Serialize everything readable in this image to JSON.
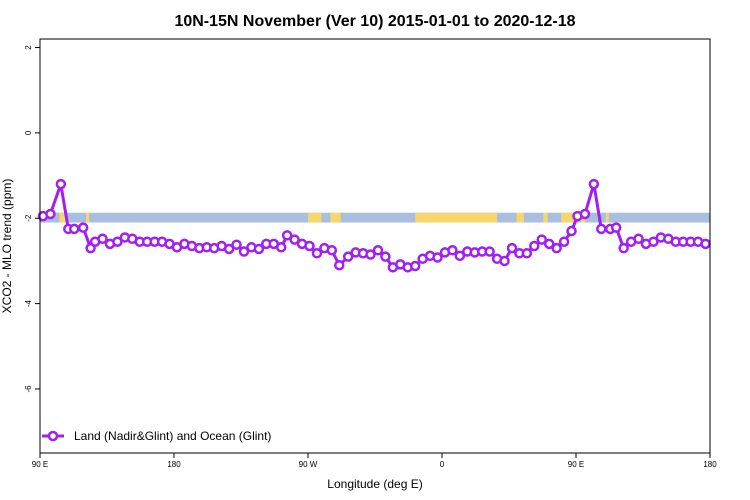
{
  "chart_data": {
    "type": "line",
    "title": "10N-15N November (Ver 10)   2015-01-01 to 2020-12-18",
    "xlabel": "Longitude (deg E)",
    "ylabel": "XCO2 - MLO trend (ppm)",
    "xlim": [
      90,
      540
    ],
    "ylim": [
      -7.5,
      2.2
    ],
    "x_ticks": [
      {
        "value": 90,
        "label": "90 E"
      },
      {
        "value": 180,
        "label": "180"
      },
      {
        "value": 270,
        "label": "90 W"
      },
      {
        "value": 360,
        "label": "0"
      },
      {
        "value": 450,
        "label": "90 E"
      },
      {
        "value": 540,
        "label": "180"
      }
    ],
    "y_ticks": [
      {
        "value": 2,
        "label": "2"
      },
      {
        "value": 0,
        "label": "0"
      },
      {
        "value": -2,
        "label": "-2"
      },
      {
        "value": -4,
        "label": "-4"
      },
      {
        "value": -6,
        "label": "-6"
      }
    ],
    "colors": {
      "series": "#a020f0",
      "ocean": "#a8bfe0",
      "land": "#f5d76e"
    },
    "background_band": {
      "y_top": -1.87,
      "y_bottom": -2.1,
      "land_segments": [
        [
          103,
          108
        ],
        [
          121,
          123
        ],
        [
          270,
          279
        ],
        [
          285,
          292
        ],
        [
          342,
          397
        ],
        [
          410,
          415
        ],
        [
          428,
          431
        ],
        [
          440,
          450
        ],
        [
          453,
          456
        ],
        [
          470,
          472
        ]
      ]
    },
    "series": [
      {
        "name": "Land (Nadir&Glint) and Ocean (Glint)",
        "x": [
          92,
          97,
          104,
          109,
          113,
          119,
          124,
          127,
          132,
          137,
          142,
          147,
          152,
          157,
          162,
          167,
          172,
          177,
          182,
          187,
          192,
          197,
          202,
          207,
          212,
          217,
          222,
          227,
          232,
          237,
          242,
          247,
          252,
          256,
          261,
          266,
          271,
          276,
          281,
          286,
          291,
          297,
          302,
          307,
          312,
          317,
          322,
          327,
          332,
          337,
          342,
          347,
          352,
          357,
          362,
          367,
          372,
          377,
          382,
          387,
          392,
          397,
          402,
          407,
          412,
          417,
          422,
          427,
          432,
          437,
          442,
          447,
          451,
          456,
          462,
          467,
          473,
          477,
          482,
          487,
          492,
          497,
          502,
          507,
          512,
          517,
          522,
          527,
          532,
          537
        ],
        "y": [
          -1.95,
          -1.9,
          -1.2,
          -2.25,
          -2.25,
          -2.22,
          -2.7,
          -2.55,
          -2.48,
          -2.6,
          -2.55,
          -2.45,
          -2.48,
          -2.55,
          -2.55,
          -2.55,
          -2.55,
          -2.6,
          -2.68,
          -2.6,
          -2.65,
          -2.7,
          -2.68,
          -2.7,
          -2.65,
          -2.72,
          -2.62,
          -2.78,
          -2.68,
          -2.72,
          -2.6,
          -2.6,
          -2.68,
          -2.4,
          -2.5,
          -2.6,
          -2.65,
          -2.82,
          -2.7,
          -2.75,
          -3.1,
          -2.9,
          -2.8,
          -2.82,
          -2.85,
          -2.75,
          -2.9,
          -3.15,
          -3.08,
          -3.15,
          -3.12,
          -2.95,
          -2.88,
          -2.92,
          -2.8,
          -2.75,
          -2.88,
          -2.78,
          -2.8,
          -2.78,
          -2.78,
          -2.95,
          -3.0,
          -2.7,
          -2.82,
          -2.82,
          -2.65,
          -2.5,
          -2.6,
          -2.7,
          -2.55,
          -2.3,
          -1.95,
          -1.9,
          -1.2,
          -2.25,
          -2.25,
          -2.22,
          -2.7,
          -2.55,
          -2.48,
          -2.6,
          -2.55,
          -2.45,
          -2.48,
          -2.55,
          -2.55,
          -2.55,
          -2.55,
          -2.6
        ]
      }
    ],
    "legend": {
      "position": "bottom-left",
      "entries": [
        "Land (Nadir&Glint) and Ocean (Glint)"
      ]
    },
    "grid": false
  }
}
